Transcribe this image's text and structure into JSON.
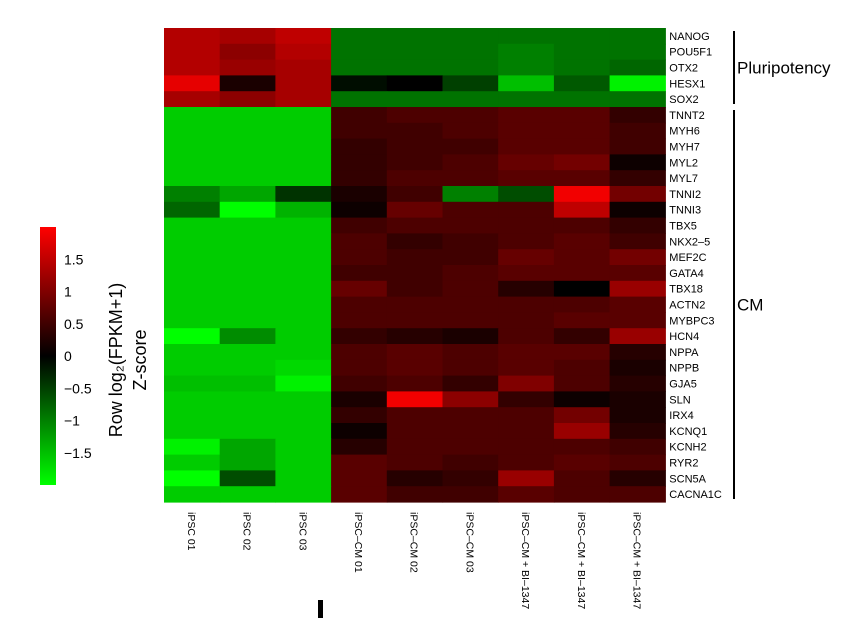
{
  "chart_data": {
    "type": "heatmap",
    "x": [
      "iPSC 01",
      "iPSC 02",
      "iPSC 03",
      "iPSC–CM 01",
      "iPSC–CM 02",
      "iPSC–CM 03",
      "iPSC–CM + BI–1347",
      "iPSC–CM + BI–1347",
      "iPSC–CM + BI–1347"
    ],
    "y": [
      "NANOG",
      "POU5F1",
      "OTX2",
      "HESX1",
      "SOX2",
      "TNNT2",
      "MYH6",
      "MYH7",
      "MYL2",
      "MYL7",
      "TNNI2",
      "TNNI3",
      "TBX5",
      "NKX2–5",
      "MEF2C",
      "GATA4",
      "TBX18",
      "ACTN2",
      "MYBPC3",
      "HCN4",
      "NPPA",
      "NPPB",
      "GJA5",
      "SLN",
      "IRX4",
      "KCNQ1",
      "KCNH2",
      "RYR2",
      "SCN5A",
      "CACNA1C"
    ],
    "groups": [
      {
        "label": "Pluripotency",
        "start": 0,
        "end": 4
      },
      {
        "label": "CM",
        "start": 5,
        "end": 29
      }
    ],
    "values": [
      [
        1.4,
        1.3,
        1.5,
        -0.9,
        -0.9,
        -0.9,
        -0.9,
        -0.9,
        -0.9
      ],
      [
        1.4,
        1.1,
        1.4,
        -0.9,
        -0.9,
        -0.9,
        -1.0,
        -0.9,
        -0.9
      ],
      [
        1.4,
        1.2,
        1.3,
        -0.9,
        -0.9,
        -0.9,
        -1.0,
        -0.9,
        -0.8
      ],
      [
        1.8,
        0.2,
        1.3,
        -0.1,
        0.0,
        -0.5,
        -1.5,
        -0.7,
        -1.9
      ],
      [
        1.3,
        1.1,
        1.3,
        -0.9,
        -0.9,
        -0.9,
        -0.9,
        -0.9,
        -0.9
      ],
      [
        -1.6,
        -1.6,
        -1.6,
        0.5,
        0.6,
        0.6,
        0.7,
        0.7,
        0.4
      ],
      [
        -1.6,
        -1.6,
        -1.6,
        0.5,
        0.5,
        0.6,
        0.7,
        0.7,
        0.5
      ],
      [
        -1.6,
        -1.6,
        -1.6,
        0.4,
        0.5,
        0.5,
        0.7,
        0.7,
        0.5
      ],
      [
        -1.6,
        -1.6,
        -1.6,
        0.4,
        0.5,
        0.6,
        0.8,
        0.9,
        0.1
      ],
      [
        -1.6,
        -1.6,
        -1.6,
        0.4,
        0.6,
        0.6,
        0.7,
        0.7,
        0.4
      ],
      [
        -1.0,
        -1.3,
        -0.4,
        0.2,
        0.5,
        -1.0,
        -0.6,
        1.9,
        0.9
      ],
      [
        -0.8,
        -2.0,
        -1.4,
        0.1,
        0.8,
        0.6,
        0.6,
        1.5,
        0.1
      ],
      [
        -1.6,
        -1.6,
        -1.6,
        0.5,
        0.6,
        0.6,
        0.6,
        0.6,
        0.4
      ],
      [
        -1.6,
        -1.6,
        -1.6,
        0.6,
        0.4,
        0.5,
        0.6,
        0.7,
        0.5
      ],
      [
        -1.6,
        -1.6,
        -1.6,
        0.6,
        0.5,
        0.5,
        0.8,
        0.7,
        0.9
      ],
      [
        -1.6,
        -1.6,
        -1.6,
        0.5,
        0.5,
        0.6,
        0.7,
        0.7,
        0.7
      ],
      [
        -1.6,
        -1.6,
        -1.6,
        0.8,
        0.5,
        0.6,
        0.3,
        0.0,
        1.2
      ],
      [
        -1.6,
        -1.6,
        -1.6,
        0.6,
        0.6,
        0.6,
        0.6,
        0.6,
        0.7
      ],
      [
        -1.6,
        -1.6,
        -1.6,
        0.6,
        0.6,
        0.6,
        0.6,
        0.7,
        0.7
      ],
      [
        -2.0,
        -1.1,
        -1.6,
        0.4,
        0.3,
        0.2,
        0.6,
        0.4,
        1.2
      ],
      [
        -1.6,
        -1.6,
        -1.6,
        0.6,
        0.7,
        0.6,
        0.7,
        0.7,
        0.3
      ],
      [
        -1.6,
        -1.6,
        -1.7,
        0.6,
        0.7,
        0.6,
        0.7,
        0.6,
        0.2
      ],
      [
        -1.5,
        -1.5,
        -1.9,
        0.5,
        0.6,
        0.4,
        1.0,
        0.6,
        0.3
      ],
      [
        -1.6,
        -1.6,
        -1.6,
        0.2,
        1.9,
        1.1,
        0.4,
        0.1,
        0.2
      ],
      [
        -1.6,
        -1.6,
        -1.6,
        0.4,
        0.6,
        0.6,
        0.6,
        0.9,
        0.2
      ],
      [
        -1.6,
        -1.6,
        -1.6,
        0.1,
        0.6,
        0.6,
        0.6,
        1.2,
        0.3
      ],
      [
        -1.9,
        -1.3,
        -1.6,
        0.3,
        0.6,
        0.6,
        0.6,
        0.6,
        0.5
      ],
      [
        -1.6,
        -1.3,
        -1.6,
        0.7,
        0.6,
        0.5,
        0.6,
        0.7,
        0.6
      ],
      [
        -2.1,
        -0.6,
        -1.6,
        0.7,
        0.3,
        0.4,
        1.2,
        0.6,
        0.3
      ],
      [
        -1.6,
        -1.6,
        -1.6,
        0.7,
        0.5,
        0.5,
        0.7,
        0.6,
        0.6
      ]
    ],
    "colorbar": {
      "title_line1": "Row log₂(FPKM+1)",
      "title_line2": "Z-score",
      "range": [
        -2,
        2
      ],
      "ticks": [
        1.5,
        1,
        0.5,
        0,
        -0.5,
        -1,
        -1.5
      ],
      "tick_labels": [
        "1.5",
        "1",
        "0.5",
        "0",
        "−0.5",
        "−1",
        "−1.5"
      ],
      "low_color": "#00ff00",
      "mid_color": "#000000",
      "high_color": "#ff0000"
    }
  }
}
